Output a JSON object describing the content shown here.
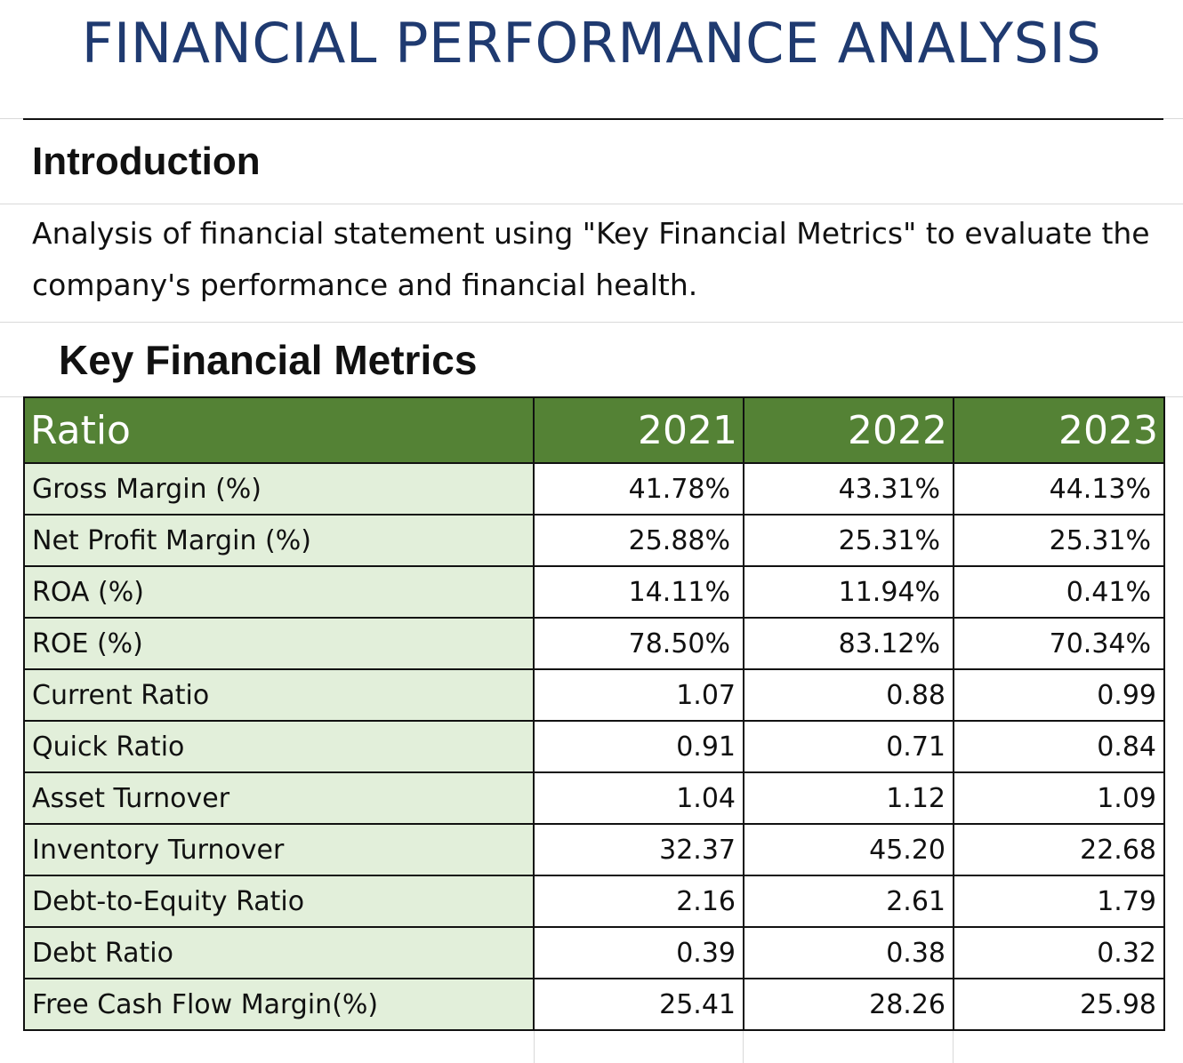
{
  "title": "FINANCIAL PERFORMANCE ANALYSIS",
  "introduction": {
    "heading": "Introduction",
    "body": "Analysis of financial statement using \"Key Financial Metrics\" to evaluate the company's performance and financial health."
  },
  "metrics": {
    "heading": "Key Financial Metrics",
    "header": {
      "ratio": "Ratio",
      "years": [
        "2021",
        "2022",
        "2023"
      ]
    },
    "rows": [
      {
        "label": "Gross Margin (%)",
        "values": [
          "41.78%",
          "43.31%",
          "44.13%"
        ]
      },
      {
        "label": "Net Profit Margin (%)",
        "values": [
          "25.88%",
          "25.31%",
          "25.31%"
        ]
      },
      {
        "label": "ROA (%)",
        "values": [
          "14.11%",
          "11.94%",
          "0.41%"
        ]
      },
      {
        "label": "ROE (%)",
        "values": [
          "78.50%",
          "83.12%",
          "70.34%"
        ]
      },
      {
        "label": "Current Ratio",
        "values": [
          "1.07",
          "0.88",
          "0.99"
        ]
      },
      {
        "label": "Quick Ratio",
        "values": [
          "0.91",
          "0.71",
          "0.84"
        ]
      },
      {
        "label": "Asset Turnover",
        "values": [
          "1.04",
          "1.12",
          "1.09"
        ]
      },
      {
        "label": "Inventory Turnover",
        "values": [
          "32.37",
          "45.20",
          "22.68"
        ]
      },
      {
        "label": "Debt-to-Equity Ratio",
        "values": [
          "2.16",
          "2.61",
          "1.79"
        ]
      },
      {
        "label": "Debt Ratio",
        "values": [
          "0.39",
          "0.38",
          "0.32"
        ]
      },
      {
        "label": "Free Cash Flow Margin(%)",
        "values": [
          "25.41",
          "28.26",
          "25.98"
        ]
      }
    ]
  },
  "colors": {
    "title": "#1f3a70",
    "header_fill": "#548235",
    "label_fill": "#e2efda"
  }
}
